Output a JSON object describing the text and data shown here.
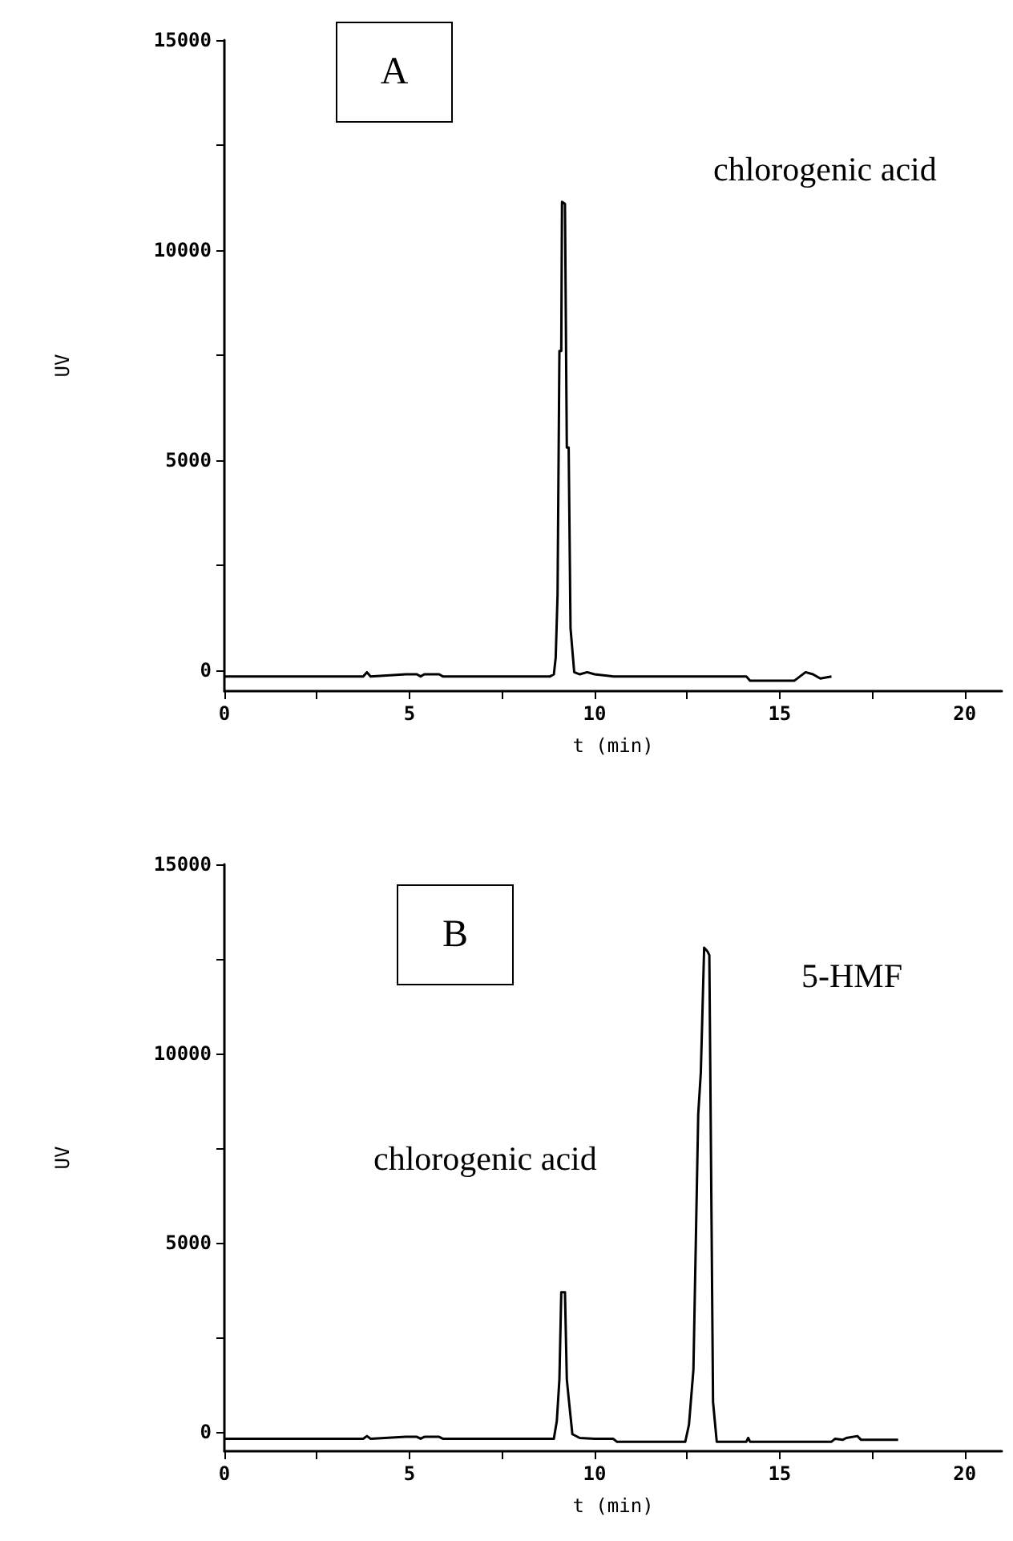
{
  "chart_data": [
    {
      "type": "line",
      "title": "A",
      "xlabel": "t (min)",
      "ylabel": "UV",
      "annotations": [
        "chlorogenic acid"
      ],
      "marker": "none",
      "grid": false,
      "xlim": [
        0,
        21
      ],
      "ylim": [
        -500,
        15000
      ],
      "xticks": [
        0,
        {
          "value": 2.5,
          "label": null
        },
        5,
        {
          "value": 7.5,
          "label": null
        },
        10,
        {
          "value": 12.5,
          "label": null
        },
        15,
        {
          "value": 17.5,
          "label": null
        },
        20
      ],
      "yticks": [
        0,
        {
          "value": 2500,
          "label": null
        },
        5000,
        {
          "value": 7500,
          "label": null
        },
        10000,
        {
          "value": 12500,
          "label": null
        },
        15000
      ],
      "series": [
        {
          "color": "#000000",
          "x": [
            0,
            3.75,
            3.85,
            3.95,
            4.9,
            5.2,
            5.3,
            5.4,
            5.8,
            5.9,
            8.8,
            8.9,
            8.95,
            9.0,
            9.05,
            9.1,
            9.12,
            9.2,
            9.25,
            9.3,
            9.35,
            9.45,
            9.6,
            9.8,
            10.0,
            10.5,
            14.1,
            14.2,
            15.4,
            15.7,
            15.9,
            16.1,
            16.4
          ],
          "values": [
            -150,
            -150,
            -50,
            -150,
            -100,
            -100,
            -150,
            -100,
            -100,
            -150,
            -150,
            -100,
            300,
            1800,
            7600,
            7600,
            11150,
            11100,
            5300,
            5300,
            1000,
            -50,
            -100,
            -50,
            -100,
            -150,
            -150,
            -250,
            -250,
            -50,
            -100,
            -200,
            -150
          ]
        }
      ]
    },
    {
      "type": "line",
      "title": "B",
      "xlabel": "t (min)",
      "ylabel": "UV",
      "annotations": [
        "chlorogenic acid",
        "5-HMF"
      ],
      "marker": "none",
      "grid": false,
      "xlim": [
        0,
        21
      ],
      "ylim": [
        -500,
        15000
      ],
      "xticks": [
        0,
        {
          "value": 2.5,
          "label": null
        },
        5,
        {
          "value": 7.5,
          "label": null
        },
        10,
        {
          "value": 12.5,
          "label": null
        },
        15,
        {
          "value": 17.5,
          "label": null
        },
        20
      ],
      "yticks": [
        0,
        {
          "value": 2500,
          "label": null
        },
        5000,
        {
          "value": 7500,
          "label": null
        },
        10000,
        {
          "value": 12500,
          "label": null
        },
        15000
      ],
      "series": [
        {
          "color": "#000000",
          "x": [
            0,
            3.75,
            3.85,
            3.95,
            4.9,
            5.2,
            5.3,
            5.4,
            5.8,
            5.9,
            8.9,
            8.98,
            9.05,
            9.1,
            9.2,
            9.25,
            9.3,
            9.4,
            9.6,
            10.0,
            10.5,
            10.6,
            12.45,
            12.55,
            12.67,
            12.8,
            12.87,
            12.96,
            13.05,
            13.1,
            13.2,
            13.3,
            14.1,
            14.15,
            14.2,
            16.4,
            16.5,
            16.7,
            16.8,
            17.1,
            17.2,
            18.2
          ],
          "values": [
            -170,
            -170,
            -100,
            -170,
            -120,
            -120,
            -170,
            -120,
            -120,
            -170,
            -170,
            300,
            1400,
            3700,
            3700,
            1400,
            900,
            -50,
            -150,
            -170,
            -170,
            -250,
            -250,
            200,
            1650,
            8400,
            9500,
            12800,
            12700,
            12600,
            800,
            -250,
            -250,
            -150,
            -250,
            -250,
            -170,
            -200,
            -150,
            -100,
            -200,
            -200
          ]
        }
      ]
    }
  ]
}
